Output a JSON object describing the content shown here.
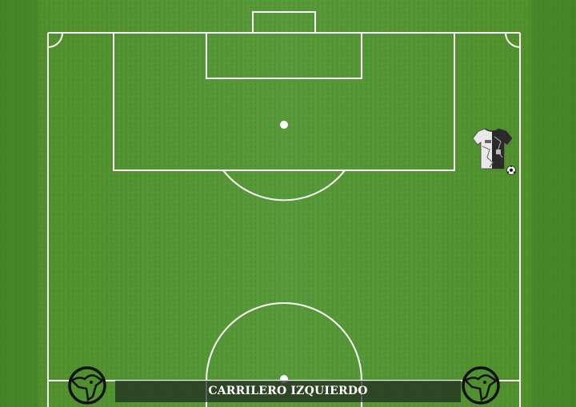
{
  "position_label": "CARRILERO IZQUIERDO",
  "colors": {
    "grass_dark": "#3f7d23",
    "grass_light": "#5a9a32",
    "lines": "#ffffff",
    "banner_bg": "#1e281e"
  },
  "icons": {
    "player": "jersey-icon",
    "ball": "soccer-ball-icon",
    "club_logo": "club-crest-icon"
  }
}
